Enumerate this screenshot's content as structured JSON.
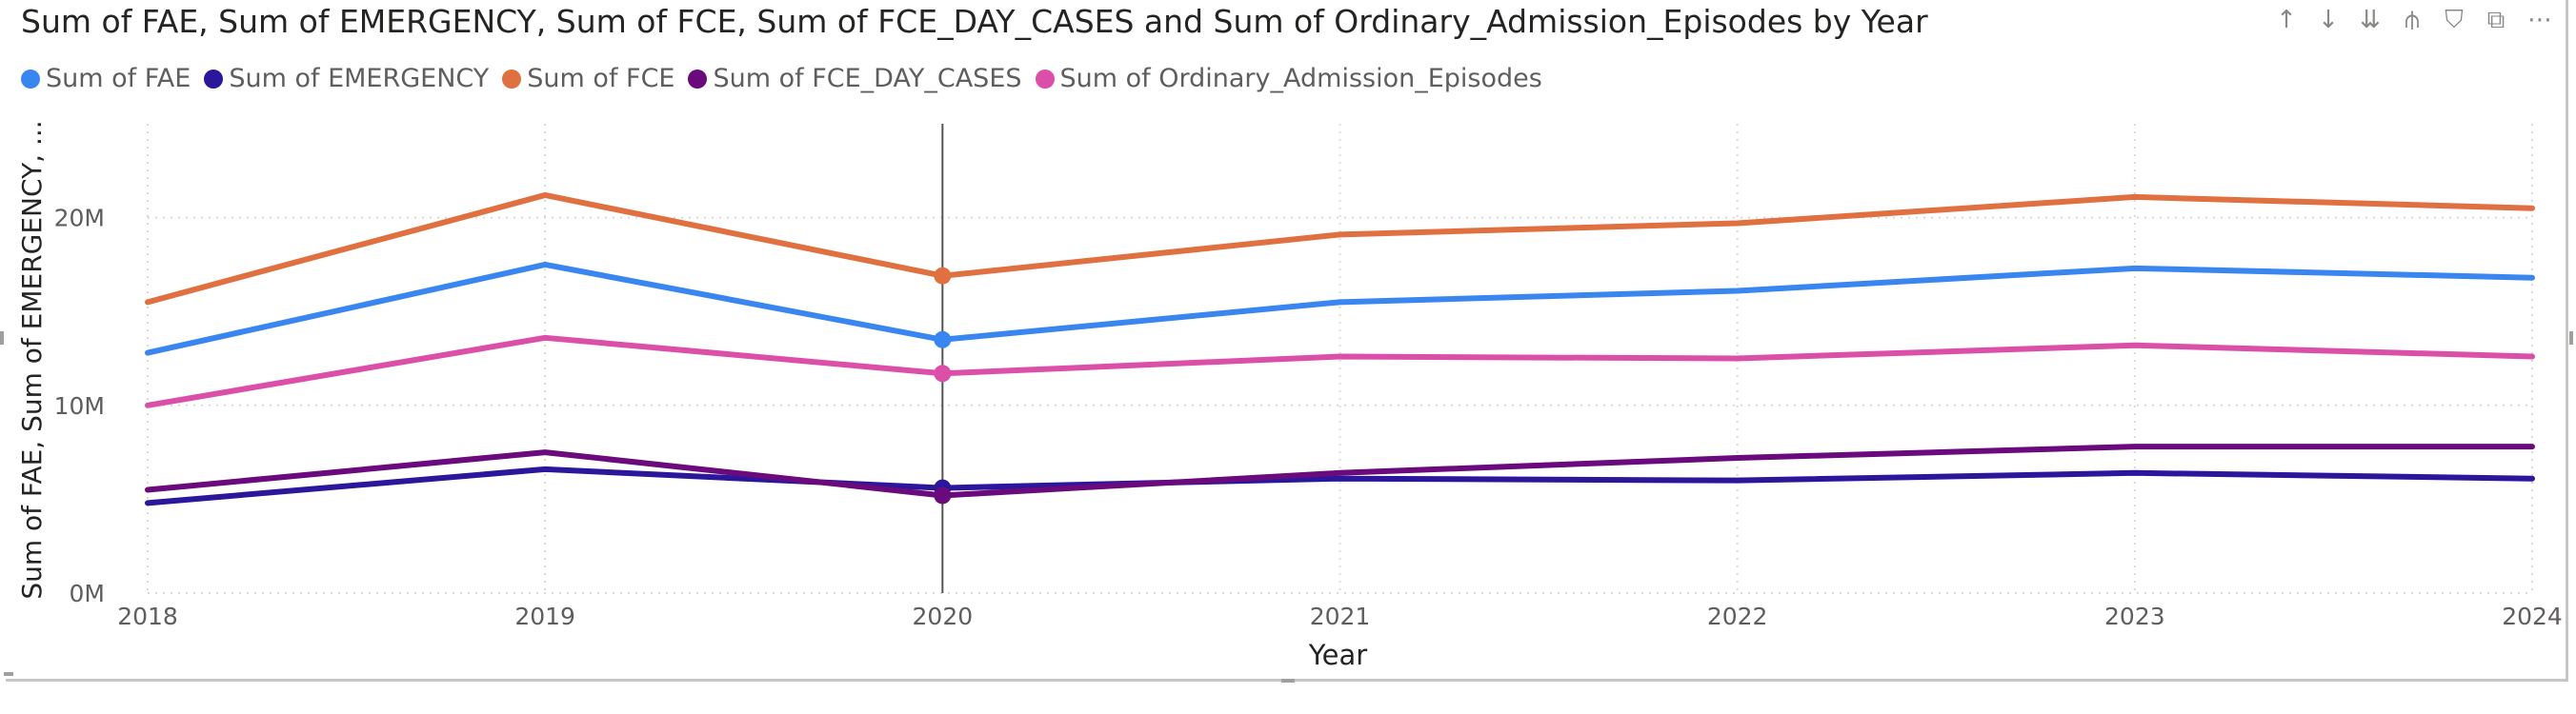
{
  "visual": {
    "title": "Sum of FAE, Sum of EMERGENCY, Sum of FCE, Sum of FCE_DAY_CASES and Sum of Ordinary_Admission_Episodes by Year",
    "toolbar_icons": [
      "drill-up-icon",
      "drill-down-icon",
      "expand-all-icon",
      "expand-hierarchy-icon",
      "filter-icon",
      "focus-mode-icon",
      "more-options-icon"
    ],
    "toolbar_glyphs": [
      "↑",
      "↓",
      "⇊",
      "⫛",
      "⛉",
      "⧉",
      "⋯"
    ]
  },
  "chart_data": {
    "type": "line",
    "xlabel": "Year",
    "ylabel": "Sum of FAE, Sum of EMERGENCY, ...",
    "x": [
      "2018",
      "2019",
      "2020",
      "2021",
      "2022",
      "2023",
      "2024"
    ],
    "yticks": [
      "0M",
      "10M",
      "20M"
    ],
    "ylim": [
      0,
      25000000
    ],
    "grid": true,
    "legend_position": "top-left",
    "highlighted_x": "2020",
    "series": [
      {
        "name": "Sum of FAE",
        "color": "#3a86f0",
        "values": [
          12800000,
          17500000,
          13500000,
          15500000,
          16100000,
          17300000,
          16800000
        ]
      },
      {
        "name": "Sum of EMERGENCY",
        "color": "#2b179c",
        "values": [
          4800000,
          6600000,
          5600000,
          6100000,
          6000000,
          6400000,
          6100000
        ]
      },
      {
        "name": "Sum of FCE",
        "color": "#e07040",
        "values": [
          15500000,
          21200000,
          16900000,
          19100000,
          19700000,
          21100000,
          20500000
        ]
      },
      {
        "name": "Sum of FCE_DAY_CASES",
        "color": "#6b0a7c",
        "values": [
          5500000,
          7500000,
          5200000,
          6400000,
          7200000,
          7800000,
          7800000
        ]
      },
      {
        "name": "Sum of Ordinary_Admission_Episodes",
        "color": "#dc4fa8",
        "values": [
          10000000,
          13600000,
          11700000,
          12600000,
          12500000,
          13200000,
          12600000
        ]
      }
    ]
  }
}
